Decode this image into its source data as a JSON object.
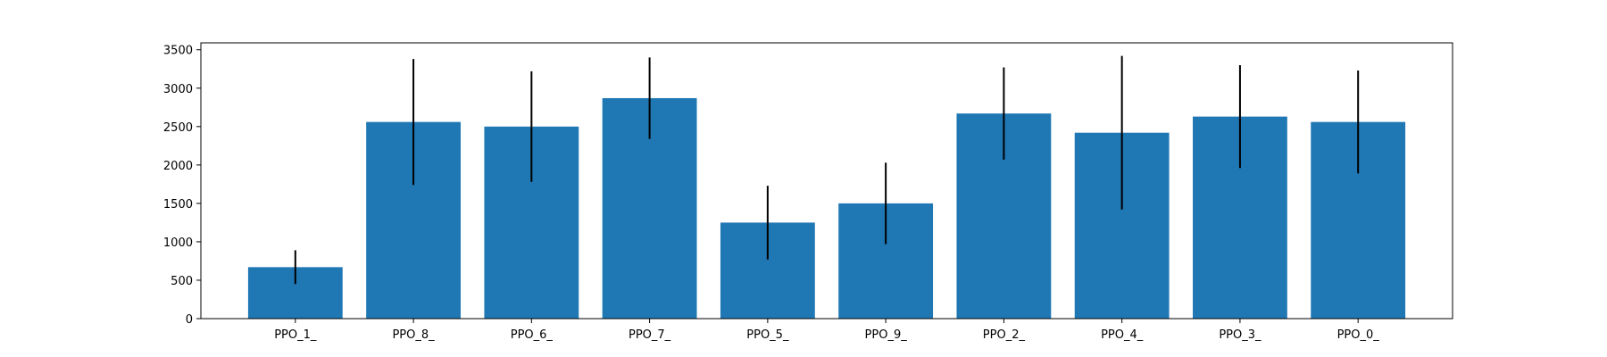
{
  "chart_data": {
    "type": "bar",
    "title": "",
    "xlabel": "",
    "ylabel": "",
    "categories": [
      "PPO_1_",
      "PPO_8_",
      "PPO_6_",
      "PPO_7_",
      "PPO_5_",
      "PPO_9_",
      "PPO_2_",
      "PPO_4_",
      "PPO_3_",
      "PPO_0_"
    ],
    "values": [
      670,
      2560,
      2500,
      2870,
      1250,
      1500,
      2670,
      2420,
      2630,
      2560
    ],
    "error": [
      220,
      820,
      720,
      530,
      480,
      530,
      600,
      1000,
      670,
      670
    ],
    "ylim": [
      0,
      3590
    ],
    "yticks": [
      0,
      500,
      1000,
      1500,
      2000,
      2500,
      3000,
      3500
    ],
    "grid": false,
    "legend": "none",
    "bar_color": "#1f77b4",
    "error_color": "#000000"
  }
}
